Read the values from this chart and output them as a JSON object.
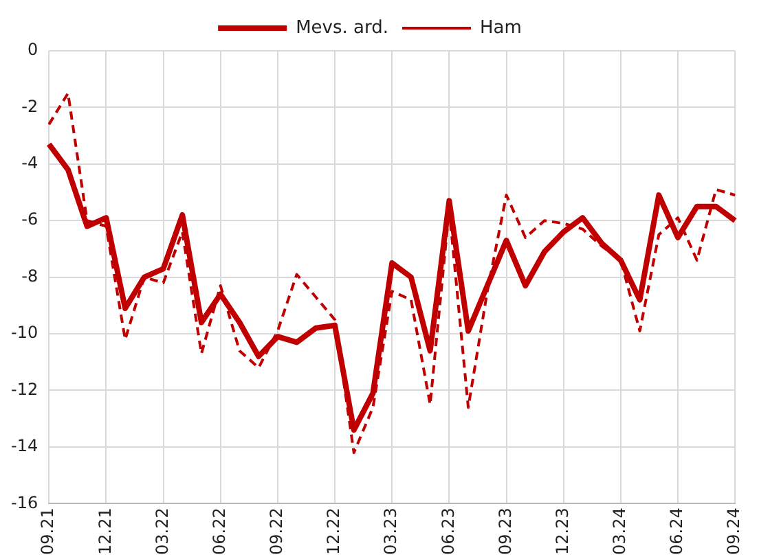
{
  "chart_data": {
    "type": "line",
    "categories": [
      "09.21",
      null,
      null,
      "12.21",
      null,
      null,
      "03.22",
      null,
      null,
      "06.22",
      null,
      null,
      "09.22",
      null,
      null,
      "12.22",
      null,
      null,
      "03.23",
      null,
      null,
      "06.23",
      null,
      null,
      "09.23",
      null,
      null,
      "12.23",
      null,
      null,
      "03.24",
      null,
      null,
      "06.24",
      null,
      null,
      "09.24"
    ],
    "series": [
      {
        "name": "Mevs. ard.",
        "color": "#c00000",
        "line_style": "solid",
        "values": [
          -3.3,
          -4.2,
          -6.2,
          -5.9,
          -9.1,
          -8.0,
          -7.7,
          -5.8,
          -9.6,
          -8.6,
          -9.6,
          -10.8,
          -10.1,
          -10.3,
          -9.8,
          -9.7,
          -13.4,
          -12.1,
          -7.5,
          -8.0,
          -10.6,
          -5.3,
          -9.9,
          -8.3,
          -6.7,
          -8.3,
          -7.1,
          -6.4,
          -5.9,
          -6.8,
          -7.4,
          -8.8,
          -5.1,
          -6.6,
          -5.5,
          -5.5,
          -6.0
        ]
      },
      {
        "name": "Ham",
        "color": "#c00000",
        "line_style": "dashed",
        "values": [
          -2.6,
          -1.5,
          -6.0,
          -6.2,
          -10.2,
          -8.0,
          -8.2,
          -6.4,
          -10.7,
          -8.3,
          -10.6,
          -11.2,
          -9.9,
          -7.9,
          -8.7,
          -9.5,
          -14.2,
          -12.6,
          -8.5,
          -8.8,
          -12.5,
          -5.6,
          -12.6,
          -8.5,
          -5.1,
          -6.6,
          -6.0,
          -6.1,
          -6.3,
          -6.9,
          -7.4,
          -9.9,
          -6.5,
          -5.9,
          -7.4,
          -4.9,
          -5.1
        ]
      }
    ],
    "ylim": [
      -16,
      0
    ],
    "yticks": [
      -16,
      -14,
      -12,
      -10,
      -8,
      -6,
      -4,
      -2,
      0
    ],
    "grid": true,
    "legend": "top",
    "marker": "none"
  }
}
